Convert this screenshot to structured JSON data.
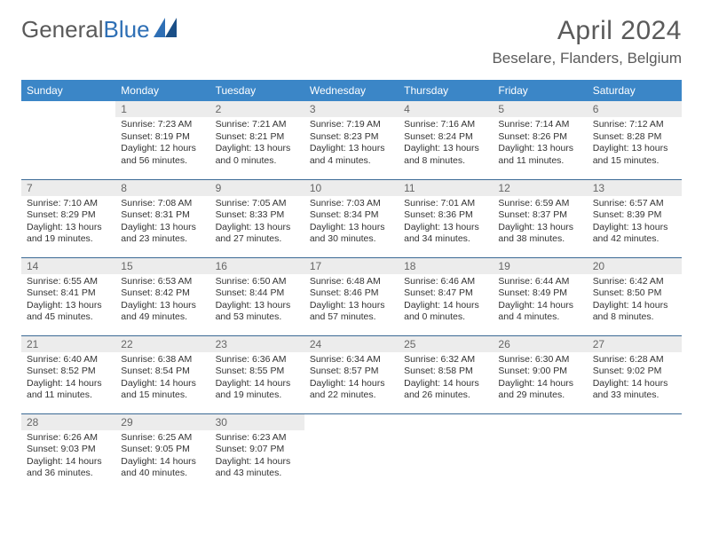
{
  "logo": {
    "text1": "General",
    "text2": "Blue"
  },
  "title": "April 2024",
  "location": "Beselare, Flanders, Belgium",
  "colors": {
    "header_bg": "#3b86c7",
    "header_text": "#ffffff",
    "daynum_bg": "#ececec",
    "daynum_text": "#666666",
    "body_text": "#333333",
    "rule": "#3b6a95",
    "logo_gray": "#5a5a5a",
    "logo_blue": "#2e6fb5"
  },
  "weekdays": [
    "Sunday",
    "Monday",
    "Tuesday",
    "Wednesday",
    "Thursday",
    "Friday",
    "Saturday"
  ],
  "weeks": [
    [
      null,
      {
        "n": "1",
        "sr": "Sunrise: 7:23 AM",
        "ss": "Sunset: 8:19 PM",
        "d1": "Daylight: 12 hours",
        "d2": "and 56 minutes."
      },
      {
        "n": "2",
        "sr": "Sunrise: 7:21 AM",
        "ss": "Sunset: 8:21 PM",
        "d1": "Daylight: 13 hours",
        "d2": "and 0 minutes."
      },
      {
        "n": "3",
        "sr": "Sunrise: 7:19 AM",
        "ss": "Sunset: 8:23 PM",
        "d1": "Daylight: 13 hours",
        "d2": "and 4 minutes."
      },
      {
        "n": "4",
        "sr": "Sunrise: 7:16 AM",
        "ss": "Sunset: 8:24 PM",
        "d1": "Daylight: 13 hours",
        "d2": "and 8 minutes."
      },
      {
        "n": "5",
        "sr": "Sunrise: 7:14 AM",
        "ss": "Sunset: 8:26 PM",
        "d1": "Daylight: 13 hours",
        "d2": "and 11 minutes."
      },
      {
        "n": "6",
        "sr": "Sunrise: 7:12 AM",
        "ss": "Sunset: 8:28 PM",
        "d1": "Daylight: 13 hours",
        "d2": "and 15 minutes."
      }
    ],
    [
      {
        "n": "7",
        "sr": "Sunrise: 7:10 AM",
        "ss": "Sunset: 8:29 PM",
        "d1": "Daylight: 13 hours",
        "d2": "and 19 minutes."
      },
      {
        "n": "8",
        "sr": "Sunrise: 7:08 AM",
        "ss": "Sunset: 8:31 PM",
        "d1": "Daylight: 13 hours",
        "d2": "and 23 minutes."
      },
      {
        "n": "9",
        "sr": "Sunrise: 7:05 AM",
        "ss": "Sunset: 8:33 PM",
        "d1": "Daylight: 13 hours",
        "d2": "and 27 minutes."
      },
      {
        "n": "10",
        "sr": "Sunrise: 7:03 AM",
        "ss": "Sunset: 8:34 PM",
        "d1": "Daylight: 13 hours",
        "d2": "and 30 minutes."
      },
      {
        "n": "11",
        "sr": "Sunrise: 7:01 AM",
        "ss": "Sunset: 8:36 PM",
        "d1": "Daylight: 13 hours",
        "d2": "and 34 minutes."
      },
      {
        "n": "12",
        "sr": "Sunrise: 6:59 AM",
        "ss": "Sunset: 8:37 PM",
        "d1": "Daylight: 13 hours",
        "d2": "and 38 minutes."
      },
      {
        "n": "13",
        "sr": "Sunrise: 6:57 AM",
        "ss": "Sunset: 8:39 PM",
        "d1": "Daylight: 13 hours",
        "d2": "and 42 minutes."
      }
    ],
    [
      {
        "n": "14",
        "sr": "Sunrise: 6:55 AM",
        "ss": "Sunset: 8:41 PM",
        "d1": "Daylight: 13 hours",
        "d2": "and 45 minutes."
      },
      {
        "n": "15",
        "sr": "Sunrise: 6:53 AM",
        "ss": "Sunset: 8:42 PM",
        "d1": "Daylight: 13 hours",
        "d2": "and 49 minutes."
      },
      {
        "n": "16",
        "sr": "Sunrise: 6:50 AM",
        "ss": "Sunset: 8:44 PM",
        "d1": "Daylight: 13 hours",
        "d2": "and 53 minutes."
      },
      {
        "n": "17",
        "sr": "Sunrise: 6:48 AM",
        "ss": "Sunset: 8:46 PM",
        "d1": "Daylight: 13 hours",
        "d2": "and 57 minutes."
      },
      {
        "n": "18",
        "sr": "Sunrise: 6:46 AM",
        "ss": "Sunset: 8:47 PM",
        "d1": "Daylight: 14 hours",
        "d2": "and 0 minutes."
      },
      {
        "n": "19",
        "sr": "Sunrise: 6:44 AM",
        "ss": "Sunset: 8:49 PM",
        "d1": "Daylight: 14 hours",
        "d2": "and 4 minutes."
      },
      {
        "n": "20",
        "sr": "Sunrise: 6:42 AM",
        "ss": "Sunset: 8:50 PM",
        "d1": "Daylight: 14 hours",
        "d2": "and 8 minutes."
      }
    ],
    [
      {
        "n": "21",
        "sr": "Sunrise: 6:40 AM",
        "ss": "Sunset: 8:52 PM",
        "d1": "Daylight: 14 hours",
        "d2": "and 11 minutes."
      },
      {
        "n": "22",
        "sr": "Sunrise: 6:38 AM",
        "ss": "Sunset: 8:54 PM",
        "d1": "Daylight: 14 hours",
        "d2": "and 15 minutes."
      },
      {
        "n": "23",
        "sr": "Sunrise: 6:36 AM",
        "ss": "Sunset: 8:55 PM",
        "d1": "Daylight: 14 hours",
        "d2": "and 19 minutes."
      },
      {
        "n": "24",
        "sr": "Sunrise: 6:34 AM",
        "ss": "Sunset: 8:57 PM",
        "d1": "Daylight: 14 hours",
        "d2": "and 22 minutes."
      },
      {
        "n": "25",
        "sr": "Sunrise: 6:32 AM",
        "ss": "Sunset: 8:58 PM",
        "d1": "Daylight: 14 hours",
        "d2": "and 26 minutes."
      },
      {
        "n": "26",
        "sr": "Sunrise: 6:30 AM",
        "ss": "Sunset: 9:00 PM",
        "d1": "Daylight: 14 hours",
        "d2": "and 29 minutes."
      },
      {
        "n": "27",
        "sr": "Sunrise: 6:28 AM",
        "ss": "Sunset: 9:02 PM",
        "d1": "Daylight: 14 hours",
        "d2": "and 33 minutes."
      }
    ],
    [
      {
        "n": "28",
        "sr": "Sunrise: 6:26 AM",
        "ss": "Sunset: 9:03 PM",
        "d1": "Daylight: 14 hours",
        "d2": "and 36 minutes."
      },
      {
        "n": "29",
        "sr": "Sunrise: 6:25 AM",
        "ss": "Sunset: 9:05 PM",
        "d1": "Daylight: 14 hours",
        "d2": "and 40 minutes."
      },
      {
        "n": "30",
        "sr": "Sunrise: 6:23 AM",
        "ss": "Sunset: 9:07 PM",
        "d1": "Daylight: 14 hours",
        "d2": "and 43 minutes."
      },
      null,
      null,
      null,
      null
    ]
  ]
}
